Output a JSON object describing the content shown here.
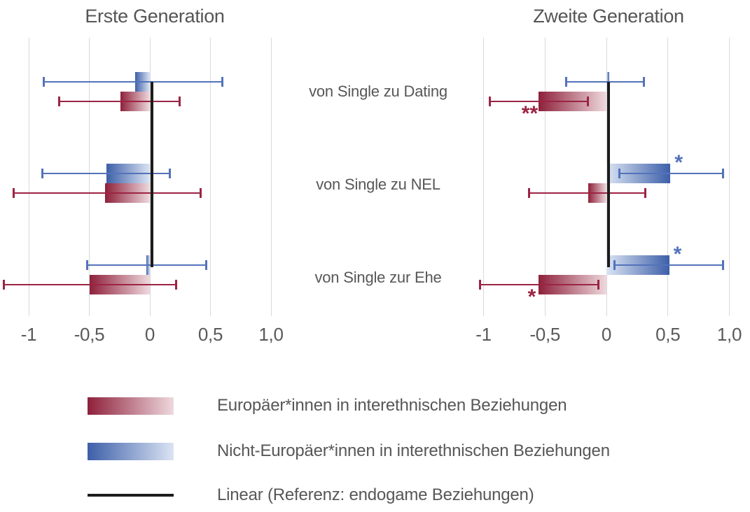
{
  "chart_data": {
    "type": "bar",
    "orientation": "horizontal",
    "categories": [
      "von Single zu Dating",
      "von Single zu NEL",
      "von Single zur Ehe"
    ],
    "x_axis": {
      "range": [
        -1,
        1
      ],
      "ticks": [
        -1,
        -0.5,
        0,
        0.5,
        1
      ],
      "tick_labels": [
        "-1",
        "-0,5",
        "0",
        "0,5",
        "1,0"
      ],
      "decimal_style": "comma",
      "grid": true
    },
    "panels": [
      {
        "title": "Erste Generation",
        "series": [
          {
            "name": "Europäer*innen in interethnischen Beziehungen",
            "color_key": "red",
            "values": [
              -0.24,
              -0.37,
              -0.5
            ],
            "ci_low": [
              -0.75,
              -1.13,
              -1.21
            ],
            "ci_high": [
              0.25,
              0.42,
              0.22
            ],
            "sig": [
              "",
              "",
              ""
            ]
          },
          {
            "name": "Nicht-Europäer*innen in interethnischen Beziehungen",
            "color_key": "blue",
            "values": [
              -0.12,
              -0.36,
              -0.03
            ],
            "ci_low": [
              -0.88,
              -0.89,
              -0.52
            ],
            "ci_high": [
              0.6,
              0.17,
              0.47
            ],
            "sig": [
              "",
              "",
              ""
            ]
          }
        ]
      },
      {
        "title": "Zweite Generation",
        "series": [
          {
            "name": "Europäer*innen in interethnischen Beziehungen",
            "color_key": "red",
            "values": [
              -0.55,
              -0.15,
              -0.55
            ],
            "ci_low": [
              -0.95,
              -0.63,
              -1.03
            ],
            "ci_high": [
              -0.15,
              0.32,
              -0.06
            ],
            "sig": [
              "**",
              "",
              "*"
            ]
          },
          {
            "name": "Nicht-Europäer*innen in interethnischen Beziehungen",
            "color_key": "blue",
            "values": [
              0.02,
              0.52,
              0.51
            ],
            "ci_low": [
              -0.33,
              0.1,
              0.06
            ],
            "ci_high": [
              0.31,
              0.95,
              0.95
            ],
            "sig": [
              "",
              "*",
              "*"
            ]
          }
        ]
      }
    ],
    "reference_line": {
      "value": 0,
      "label": "Linear (Referenz: endogame Beziehungen)"
    },
    "legend": {
      "position": "bottom-left",
      "items": [
        {
          "swatch": "red-gradient",
          "label": "Europäer*innen in interethnischen Beziehungen"
        },
        {
          "swatch": "blue-gradient",
          "label": "Nicht-Europäer*innen in interethnischen Beziehungen"
        },
        {
          "swatch": "black-line",
          "label": "Linear (Referenz: endogame Beziehungen)"
        }
      ]
    }
  },
  "colors": {
    "red_dark": "#8e203a",
    "red_light": "#eed9de",
    "blue_dark": "#3d5fa9",
    "blue_light": "#dbe4f3",
    "red_line": "#9c2443",
    "blue_line": "#5373ba",
    "reference_black": "#1c1c1c",
    "grid": "#d9d9d9",
    "text": "#575757"
  }
}
